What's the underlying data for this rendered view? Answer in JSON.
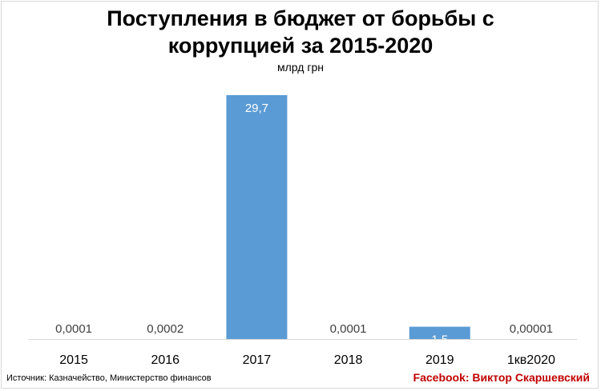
{
  "title_line1": "Поступления в бюджет от борьбы с",
  "title_line2": "коррупцией за 2015-2020",
  "subtitle": "млрд грн",
  "source": "Источник: Казначейство, Министерство финансов",
  "credit": "Facebook: Виктор Скаршевский",
  "colors": {
    "bar": "#5b9bd5",
    "axis": "#d9d9d9",
    "credit": "#c00000"
  },
  "chart_data": {
    "type": "bar",
    "categories": [
      "2015",
      "2016",
      "2017",
      "2018",
      "2019",
      "1кв2020"
    ],
    "values": [
      0.0001,
      0.0002,
      29.7,
      0.0001,
      1.5,
      1e-05
    ],
    "labels": [
      "0,0001",
      "0,0002",
      "29,7",
      "0,0001",
      "1,5",
      "0,00001"
    ],
    "title": "Поступления в бюджет от борьбы с коррупцией за 2015-2020",
    "ylabel": "млрд грн",
    "ylim": [
      0,
      29.7
    ],
    "grid": false,
    "legend": "none"
  }
}
